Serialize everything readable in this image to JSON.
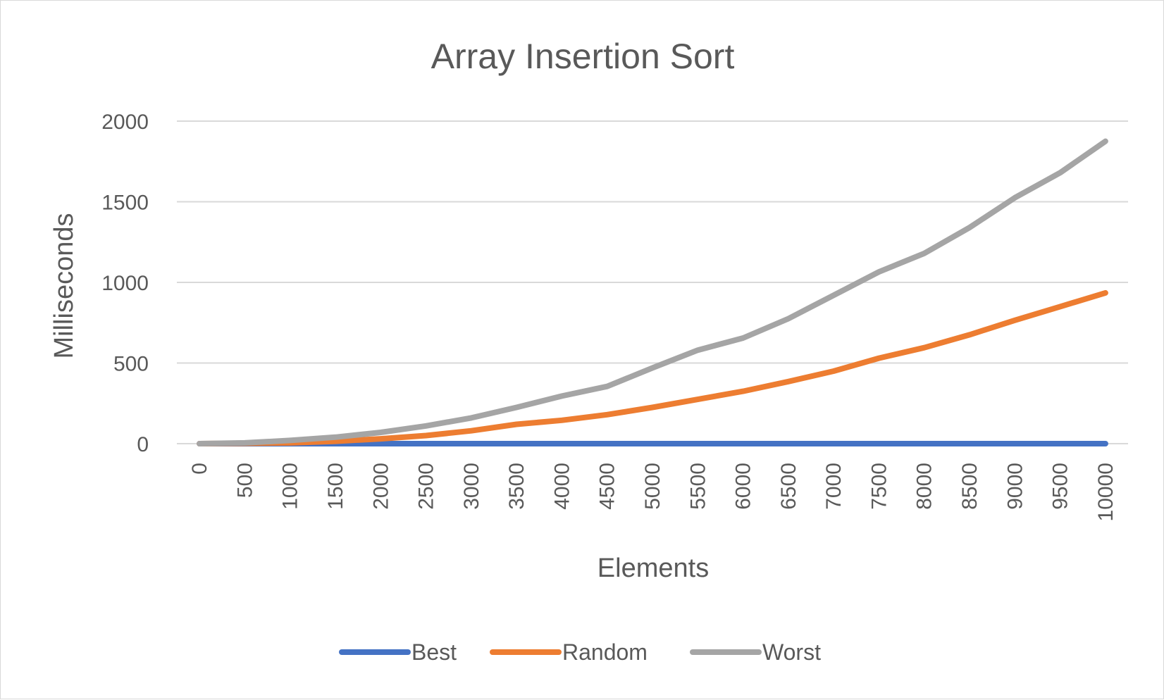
{
  "chart_data": {
    "type": "line",
    "title": "Array Insertion Sort",
    "xlabel": "Elements",
    "ylabel": "Milliseconds",
    "ylim": [
      0,
      2000
    ],
    "yticks": [
      "0",
      "500",
      "1000",
      "1500",
      "2000"
    ],
    "categories": [
      "0",
      "500",
      "1000",
      "1500",
      "2000",
      "2500",
      "3000",
      "3500",
      "4000",
      "4500",
      "5000",
      "5500",
      "6000",
      "6500",
      "7000",
      "7500",
      "8000",
      "8500",
      "9000",
      "9500",
      "10000"
    ],
    "grid": true,
    "legend_position": "bottom",
    "series": [
      {
        "name": "Best",
        "color": "#4472c4",
        "values": [
          0,
          0,
          0,
          0,
          0,
          0,
          0,
          0,
          0,
          0,
          0,
          0,
          0,
          0,
          0,
          0,
          0,
          0,
          0,
          0,
          0
        ]
      },
      {
        "name": "Random",
        "color": "#ed7d31",
        "values": [
          0,
          2,
          5,
          15,
          30,
          50,
          80,
          120,
          145,
          180,
          225,
          275,
          325,
          385,
          450,
          530,
          595,
          675,
          765,
          850,
          935
        ]
      },
      {
        "name": "Worst",
        "color": "#a5a5a5",
        "values": [
          0,
          5,
          20,
          40,
          70,
          110,
          160,
          225,
          295,
          355,
          470,
          580,
          655,
          775,
          920,
          1065,
          1180,
          1340,
          1525,
          1680,
          1875
        ]
      }
    ]
  }
}
